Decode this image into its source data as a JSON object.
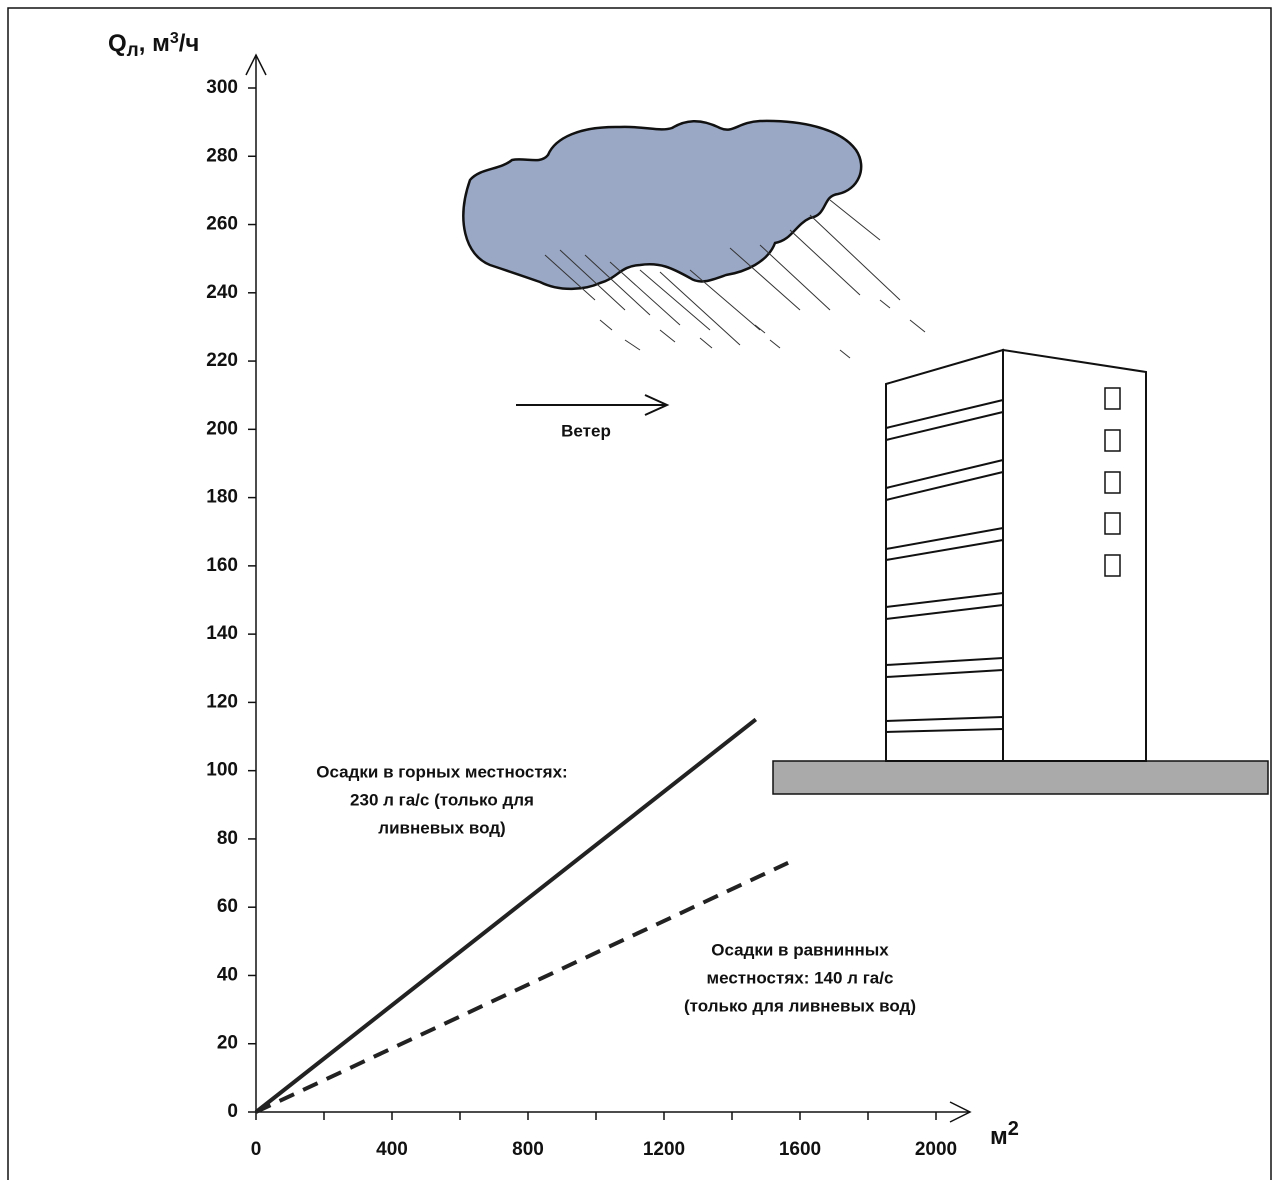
{
  "chart_data": {
    "type": "line",
    "y_label": {
      "main": "Q",
      "sub": "л",
      "rest": ", м",
      "sup": "3",
      "end": "/ч"
    },
    "x_label": {
      "main": "м",
      "sup": "2"
    },
    "annotation": "Ветер",
    "xlim": [
      0,
      2000
    ],
    "ylim": [
      0,
      300
    ],
    "xticks": [
      0,
      400,
      800,
      1200,
      1600,
      2000
    ],
    "xminor_ticks": [
      200,
      600,
      1000,
      1400,
      1800
    ],
    "yticks": [
      0,
      20,
      40,
      60,
      80,
      100,
      120,
      140,
      160,
      180,
      200,
      220,
      240,
      260,
      280,
      300
    ],
    "series": [
      {
        "name": [
          "Осадки в горных местностях:",
          "230 л га/с (только для",
          "ливневых вод)"
        ],
        "color": "#222222",
        "dashed": false,
        "x": [
          0,
          1470
        ],
        "values": [
          0,
          115
        ]
      },
      {
        "name": [
          "Осадки в равнинных",
          "местностях: 140 л га/с",
          "(только для ливневых вод)"
        ],
        "color": "#222222",
        "dashed": true,
        "x": [
          0,
          1565
        ],
        "values": [
          0,
          73
        ]
      }
    ]
  }
}
